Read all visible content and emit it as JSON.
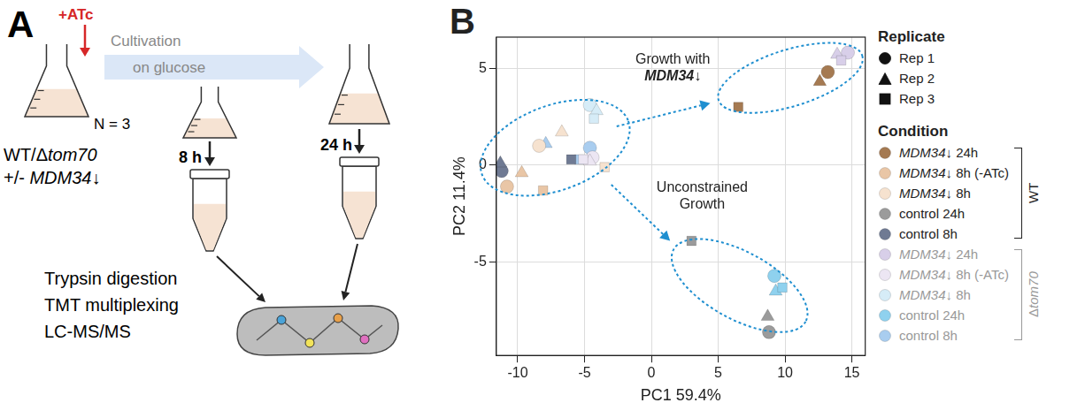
{
  "panel_a": {
    "letter": "A",
    "inducer": "+ATc",
    "process": "Cultivation on glucose",
    "n": "N = 3",
    "strains": "WT/Δtom70",
    "knockdown": "+/- MDM34↓",
    "timepoints": [
      "8 h",
      "24 h"
    ],
    "workflow": [
      "Trypsin digestion",
      "TMT multiplexing",
      "LC-MS/MS"
    ]
  },
  "chart_data": {
    "letter": "B",
    "type": "scatter",
    "xlabel": "PC1 59.4%",
    "ylabel": "PC2 11.4%",
    "xlim": [
      -11.6,
      16
    ],
    "xticks": [
      -10,
      -5,
      0,
      5,
      10,
      15
    ],
    "ylim": [
      -9.8,
      6.6
    ],
    "yticks": [
      -5,
      0,
      5
    ],
    "grid": true,
    "legend": "right",
    "replicate_title": "Replicate",
    "condition_title": "Condition",
    "replicates": [
      {
        "name": "Rep 1",
        "marker": "circle"
      },
      {
        "name": "Rep 2",
        "marker": "triangle"
      },
      {
        "name": "Rep 3",
        "marker": "square"
      }
    ],
    "groups": [
      {
        "name": "WT",
        "series": [
          {
            "name": "MDM34↓ 24h",
            "color": "#a57a52",
            "x": [
              13.2,
              12.6,
              6.5
            ],
            "y": [
              4.8,
              4.3,
              3.0
            ]
          },
          {
            "name": "MDM34↓ 8h (-ATc)",
            "color": "#e9c6a6",
            "x": [
              -10.8,
              -9.7,
              -8.1
            ],
            "y": [
              -1.1,
              -0.4,
              -1.3
            ]
          },
          {
            "name": "MDM34↓ 8h",
            "color": "#f6e2cf",
            "x": [
              -8.4,
              -6.7,
              -3.5
            ],
            "y": [
              1.0,
              1.7,
              -0.1
            ]
          },
          {
            "name": "control 24h",
            "color": "#9b9b9b",
            "x": [
              8.8,
              8.7,
              3.0
            ],
            "y": [
              -8.6,
              -7.8,
              -3.9
            ]
          },
          {
            "name": "control 8h",
            "color": "#6f7a93",
            "x": [
              -11.2,
              -11.3,
              -6.0
            ],
            "y": [
              -0.3,
              0.1,
              0.3
            ]
          }
        ]
      },
      {
        "name": "Δtom70",
        "series": [
          {
            "name": "MDM34↓ 24h",
            "color": "#d8cfe9",
            "x": [
              14.7,
              13.9,
              14.2
            ],
            "y": [
              5.8,
              5.7,
              5.4
            ]
          },
          {
            "name": "MDM34↓ 8h (-ATc)",
            "color": "#ece6f3",
            "x": [
              -4.4,
              -4.6,
              -5.1
            ],
            "y": [
              0.4,
              0.2,
              0.3
            ]
          },
          {
            "name": "MDM34↓ 8h",
            "color": "#d6ecf7",
            "x": [
              -4.6,
              -4.1,
              -4.3
            ],
            "y": [
              3.1,
              2.8,
              2.4
            ]
          },
          {
            "name": "control 24h",
            "color": "#8fd1ee",
            "x": [
              9.2,
              9.3,
              9.8
            ],
            "y": [
              -5.7,
              -6.5,
              -6.3
            ]
          },
          {
            "name": "control 8h",
            "color": "#a9cdef",
            "x": [
              -4.6,
              -7.9,
              -5.4
            ],
            "y": [
              0.9,
              1.1,
              0.3
            ]
          }
        ]
      }
    ],
    "annotations": [
      {
        "text": "Growth with MDM34↓"
      },
      {
        "text": "Unconstrained Growth"
      }
    ]
  }
}
